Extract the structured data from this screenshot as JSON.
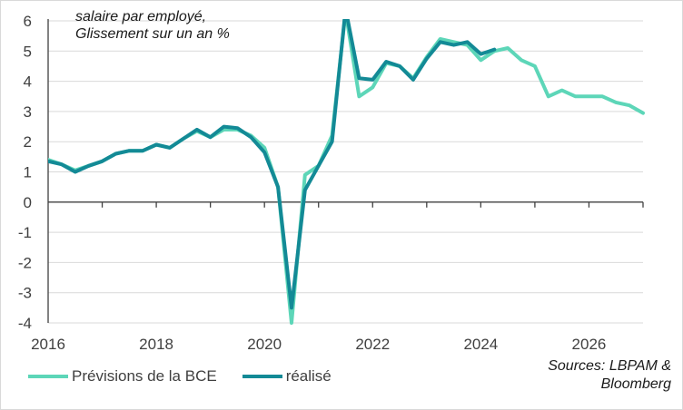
{
  "chart_data": {
    "type": "line",
    "subtitle_lines": [
      "salaire par employé,",
      "Glissement sur un an %"
    ],
    "source_lines": [
      "Sources: LBPAM &",
      "Bloomberg"
    ],
    "xlim": [
      2016,
      2027
    ],
    "ylim": [
      -4,
      6
    ],
    "x_ticks": [
      "2016",
      "2018",
      "2020",
      "2022",
      "2024",
      "2026"
    ],
    "y_ticks": [
      "6",
      "5",
      "4",
      "3",
      "2",
      "1",
      "0",
      "-1",
      "-2",
      "-3",
      "-4"
    ],
    "grid": "horizontal",
    "legend_position": "bottom-left",
    "colors": {
      "forecast": "#5dd6b8",
      "actual": "#138a96",
      "grid": "#d9d9d9",
      "axis": "#404040"
    },
    "series": [
      {
        "name": "Prévisions de la BCE",
        "x": [
          2016.0,
          2016.25,
          2016.5,
          2016.75,
          2017.0,
          2017.25,
          2017.5,
          2017.75,
          2018.0,
          2018.25,
          2018.5,
          2018.75,
          2019.0,
          2019.25,
          2019.5,
          2019.75,
          2020.0,
          2020.25,
          2020.5,
          2020.75,
          2021.0,
          2021.25,
          2021.5,
          2021.75,
          2022.0,
          2022.25,
          2022.5,
          2022.75,
          2023.0,
          2023.25,
          2023.5,
          2023.75,
          2024.0,
          2024.25,
          2024.5,
          2024.75,
          2025.0,
          2025.25,
          2025.5,
          2025.75,
          2026.0,
          2026.25,
          2026.5,
          2026.75,
          2027.0
        ],
        "values": [
          1.4,
          1.25,
          1.05,
          1.2,
          1.35,
          1.6,
          1.7,
          1.7,
          1.9,
          1.8,
          2.1,
          2.35,
          2.15,
          2.4,
          2.4,
          2.2,
          1.8,
          0.5,
          -4.0,
          0.9,
          1.2,
          2.2,
          6.3,
          3.5,
          3.8,
          4.6,
          4.5,
          4.1,
          4.8,
          5.4,
          5.3,
          5.2,
          4.7,
          5.0,
          5.1,
          4.7,
          4.5,
          3.5,
          3.7,
          3.5,
          3.5,
          3.5,
          3.3,
          3.2,
          2.95
        ]
      },
      {
        "name": "réalisé",
        "x": [
          2016.0,
          2016.25,
          2016.5,
          2016.75,
          2017.0,
          2017.25,
          2017.5,
          2017.75,
          2018.0,
          2018.25,
          2018.5,
          2018.75,
          2019.0,
          2019.25,
          2019.5,
          2019.75,
          2020.0,
          2020.25,
          2020.5,
          2020.75,
          2021.0,
          2021.25,
          2021.5,
          2021.75,
          2022.0,
          2022.25,
          2022.5,
          2022.75,
          2023.0,
          2023.25,
          2023.5,
          2023.75,
          2024.0,
          2024.25
        ],
        "values": [
          1.35,
          1.25,
          1.0,
          1.2,
          1.35,
          1.6,
          1.7,
          1.7,
          1.9,
          1.8,
          2.1,
          2.4,
          2.15,
          2.5,
          2.45,
          2.15,
          1.65,
          0.5,
          -3.5,
          0.4,
          1.2,
          2.0,
          6.4,
          4.1,
          4.05,
          4.65,
          4.5,
          4.05,
          4.75,
          5.3,
          5.2,
          5.3,
          4.9,
          5.05
        ]
      }
    ]
  }
}
